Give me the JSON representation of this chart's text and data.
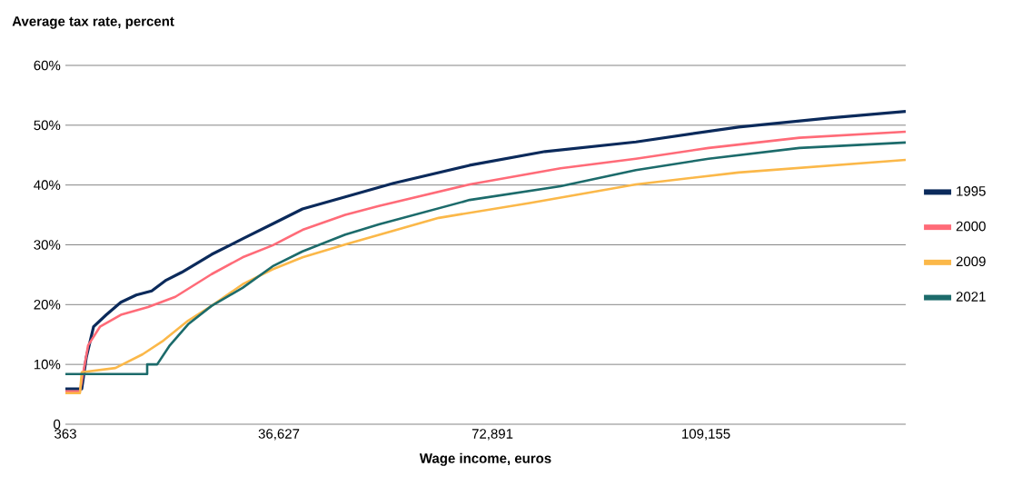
{
  "chart_data": {
    "type": "line",
    "title": "Average tax rate, percent",
    "xlabel": "Wage income, euros",
    "xlim": [
      363,
      143091
    ],
    "xticks": [
      363,
      {
        "value": 36627,
        "label": "36,627"
      },
      {
        "value": 72891,
        "label": "72,891"
      },
      {
        "value": 109155,
        "label": "109,155"
      }
    ],
    "ylim": [
      0,
      60
    ],
    "yticks": [
      0,
      {
        "value": 10,
        "label": "10%"
      },
      {
        "value": 20,
        "label": "20%"
      },
      {
        "value": 30,
        "label": "30%"
      },
      {
        "value": 40,
        "label": "40%"
      },
      {
        "value": 50,
        "label": "50%"
      },
      {
        "value": 60,
        "label": "60%"
      }
    ],
    "grid": "y",
    "legend": "right",
    "marker": "none",
    "line_style": "solid",
    "series": [
      {
        "name": "1995",
        "color": "#0b2a5b",
        "x": [
          363,
          3140,
          3912,
          5146,
          7307,
          9775,
          12398,
          15022,
          17490,
          20113,
          25205,
          30452,
          35543,
          40635,
          47887,
          56065,
          69026,
          81833,
          97263,
          114699,
          130129,
          143091
        ],
        "values": [
          5.9,
          5.9,
          11.2,
          16.3,
          18.3,
          20.4,
          21.6,
          22.3,
          24.1,
          25.4,
          28.4,
          31.0,
          33.5,
          36.0,
          38.0,
          40.3,
          43.3,
          45.6,
          47.2,
          49.7,
          51.2,
          52.3
        ]
      },
      {
        "name": "2000",
        "color": "#ff6b78",
        "x": [
          363,
          2832,
          4220,
          6226,
          9775,
          14404,
          19033,
          25205,
          30452,
          35543,
          40635,
          47887,
          53596,
          69026,
          84456,
          97263,
          109607,
          125037,
          143091
        ],
        "values": [
          5.5,
          5.5,
          13.2,
          16.3,
          18.3,
          19.6,
          21.3,
          25.1,
          27.9,
          29.9,
          32.5,
          35.0,
          36.5,
          40.1,
          42.8,
          44.4,
          46.2,
          47.9,
          48.9
        ]
      },
      {
        "name": "2009",
        "color": "#fbb849",
        "x": [
          363,
          2832,
          3140,
          8850,
          13479,
          17027,
          21194,
          25205,
          30452,
          35543,
          40635,
          48350,
          63780,
          79210,
          97263,
          114699,
          143091
        ],
        "values": [
          5.2,
          5.2,
          8.7,
          9.4,
          11.7,
          14.0,
          17.3,
          19.8,
          23.4,
          25.9,
          27.9,
          30.2,
          34.5,
          37.0,
          40.1,
          42.1,
          44.2
        ]
      },
      {
        "name": "2021",
        "color": "#1c6b6b",
        "x": [
          363,
          14250,
          14250,
          15947,
          18108,
          21194,
          25205,
          30452,
          35543,
          40635,
          47887,
          53596,
          69026,
          84456,
          97263,
          109607,
          125037,
          143091
        ],
        "values": [
          8.4,
          8.4,
          10.0,
          10.0,
          13.2,
          16.7,
          19.8,
          22.8,
          26.4,
          28.9,
          31.7,
          33.4,
          37.5,
          39.8,
          42.5,
          44.4,
          46.2,
          47.1
        ]
      }
    ]
  }
}
